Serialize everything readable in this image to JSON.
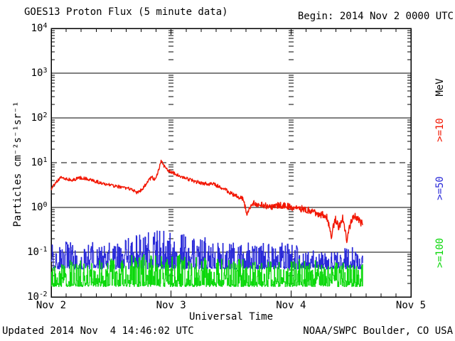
{
  "header": {
    "title": "GOES13 Proton Flux (5 minute data)",
    "begin_label": "Begin: 2014 Nov 2 0000 UTC"
  },
  "axes": {
    "x_label": "Universal Time",
    "y_label": "Particles cm⁻²s⁻¹sr⁻¹"
  },
  "legend": {
    "unit_label": "MeV",
    "p10": ">=10",
    "p50": ">=50",
    "p100": ">=100"
  },
  "footer": {
    "updated_label": "Updated 2014 Nov  4 14:46:02 UTC",
    "credit_label": "NOAA/SWPC Boulder, CO USA"
  },
  "chart_data": {
    "type": "line",
    "title": "GOES13 Proton Flux (5 minute data)",
    "begin": "2014 Nov 2 0000 UTC",
    "updated": "2014 Nov 4 14:46:02 UTC",
    "xlabel": "Universal Time",
    "ylabel": "Particles cm^-2 s^-1 sr^-1",
    "grid_on": true,
    "x_axis": {
      "range_days": [
        0,
        3
      ],
      "labels": [
        {
          "label": "Nov 2",
          "day": 0
        },
        {
          "label": "Nov 3",
          "day": 1
        },
        {
          "label": "Nov 4",
          "day": 2
        },
        {
          "label": "Nov 5",
          "day": 3
        }
      ],
      "minor_tick_hours": 3,
      "day_boundary_dash_columns_days": [
        1,
        2
      ]
    },
    "y_axis": {
      "scale": "log",
      "range": [
        0.01,
        10000
      ],
      "tick_exponents": [
        4,
        3,
        2,
        1,
        0,
        -1,
        -2
      ],
      "solid_gridline_exponents": [
        3,
        2,
        0,
        -1
      ],
      "dashed_gridline_exponents": [
        1
      ]
    },
    "event_threshold_pfu": 10,
    "data_end_day": 2.6,
    "sample_minutes": 5,
    "noise_seed": 20141104,
    "series": [
      {
        "name": ">=10",
        "unit": "MeV",
        "color": "#f21500",
        "style": "line",
        "peak_value": 11,
        "peak_day": 0.915,
        "keypoints_day_value": [
          [
            0,
            2.4
          ],
          [
            0.03,
            3.4
          ],
          [
            0.08,
            4.6
          ],
          [
            0.13,
            4.3
          ],
          [
            0.18,
            4.1
          ],
          [
            0.24,
            4.6
          ],
          [
            0.3,
            4.4
          ],
          [
            0.36,
            3.9
          ],
          [
            0.42,
            3.5
          ],
          [
            0.5,
            3.1
          ],
          [
            0.57,
            2.9
          ],
          [
            0.63,
            2.7
          ],
          [
            0.68,
            2.4
          ],
          [
            0.72,
            2.1
          ],
          [
            0.76,
            2.6
          ],
          [
            0.8,
            3.6
          ],
          [
            0.84,
            4.9
          ],
          [
            0.865,
            4.0
          ],
          [
            0.89,
            6.0
          ],
          [
            0.915,
            11.0
          ],
          [
            0.94,
            8.3
          ],
          [
            0.97,
            7.0
          ],
          [
            1.0,
            6.2
          ],
          [
            1.06,
            5.3
          ],
          [
            1.13,
            4.4
          ],
          [
            1.2,
            3.8
          ],
          [
            1.28,
            3.4
          ],
          [
            1.36,
            3.3
          ],
          [
            1.44,
            2.6
          ],
          [
            1.52,
            1.9
          ],
          [
            1.6,
            1.55
          ],
          [
            1.635,
            0.68
          ],
          [
            1.67,
            1.25
          ],
          [
            1.75,
            1.15
          ],
          [
            1.83,
            1.05
          ],
          [
            1.92,
            1.12
          ],
          [
            2.0,
            1.02
          ],
          [
            2.08,
            0.95
          ],
          [
            2.16,
            0.85
          ],
          [
            2.24,
            0.72
          ],
          [
            2.3,
            0.62
          ],
          [
            2.335,
            0.23
          ],
          [
            2.37,
            0.55
          ],
          [
            2.4,
            0.36
          ],
          [
            2.43,
            0.58
          ],
          [
            2.465,
            0.19
          ],
          [
            2.5,
            0.48
          ],
          [
            2.53,
            0.66
          ],
          [
            2.6,
            0.4
          ]
        ],
        "noise_log10_sigma_keypoints": [
          [
            0,
            0.035
          ],
          [
            1.45,
            0.04
          ],
          [
            1.7,
            0.07
          ],
          [
            2.2,
            0.08
          ],
          [
            2.6,
            0.09
          ]
        ]
      },
      {
        "name": ">=50",
        "unit": "MeV",
        "color": "#2828d8",
        "style": "steps",
        "floor": 0.042,
        "envelope_day_value": [
          [
            0,
            0.17
          ],
          [
            0.3,
            0.19
          ],
          [
            0.5,
            0.16
          ],
          [
            0.7,
            0.26
          ],
          [
            0.9,
            0.33
          ],
          [
            1.0,
            0.3
          ],
          [
            1.2,
            0.24
          ],
          [
            1.4,
            0.18
          ],
          [
            1.7,
            0.16
          ],
          [
            1.9,
            0.17
          ],
          [
            2.1,
            0.13
          ],
          [
            2.3,
            0.11
          ],
          [
            2.6,
            0.14
          ]
        ],
        "spike_exponent": 1.6,
        "floor_dwell_probability": 0.18
      },
      {
        "name": ">=100",
        "unit": "MeV",
        "color": "#0ad80a",
        "style": "steps",
        "floor": 0.017,
        "envelope_day_value": [
          [
            0,
            0.065
          ],
          [
            0.4,
            0.075
          ],
          [
            0.8,
            0.09
          ],
          [
            1.0,
            0.095
          ],
          [
            1.3,
            0.075
          ],
          [
            1.7,
            0.07
          ],
          [
            2.0,
            0.078
          ],
          [
            2.3,
            0.06
          ],
          [
            2.6,
            0.055
          ]
        ],
        "spike_exponent": 1.6,
        "floor_dwell_probability": 0.18
      }
    ]
  }
}
